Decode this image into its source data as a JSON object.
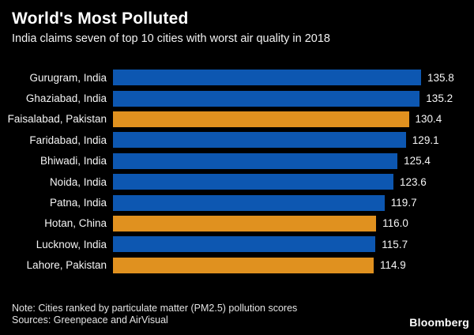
{
  "header": {
    "title": "World's Most Polluted",
    "subtitle": "India claims seven of top 10 cities with worst air quality in 2018"
  },
  "chart_data": {
    "type": "bar",
    "orientation": "horizontal",
    "title": "World's Most Polluted",
    "subtitle": "India claims seven of top 10 cities with worst air quality in 2018",
    "unit": "PM2.5 pollution score",
    "categories": [
      "Gurugram, India",
      "Ghaziabad, India",
      "Faisalabad, Pakistan",
      "Faridabad, India",
      "Bhiwadi, India",
      "Noida, India",
      "Patna, India",
      "Hotan, China",
      "Lucknow, India",
      "Lahore, Pakistan"
    ],
    "values": [
      135.8,
      135.2,
      130.4,
      129.1,
      125.4,
      123.6,
      119.7,
      116.0,
      115.7,
      114.9
    ],
    "bar_groups": [
      "india",
      "india",
      "other",
      "india",
      "india",
      "india",
      "india",
      "other",
      "india",
      "other"
    ],
    "value_labels": [
      "135.8",
      "135.2",
      "130.4",
      "129.1",
      "125.4",
      "123.6",
      "119.7",
      "116.0",
      "115.7",
      "114.9"
    ],
    "xlim": [
      0,
      135.8
    ],
    "grid": false,
    "legend": "none",
    "axis_ticks_shown": false
  },
  "colors": {
    "background": "#000000",
    "india_bar": "#0d57b1",
    "other_bar": "#e0911f",
    "title_text": "#ffffff",
    "label_text": "#f5f5f5",
    "footer_text": "#e3e3e3"
  },
  "footer": {
    "note": "Note: Cities ranked by particulate matter (PM2.5) pollution scores",
    "sources": "Sources: Greenpeace and AirVisual",
    "brand": "Bloomberg"
  }
}
